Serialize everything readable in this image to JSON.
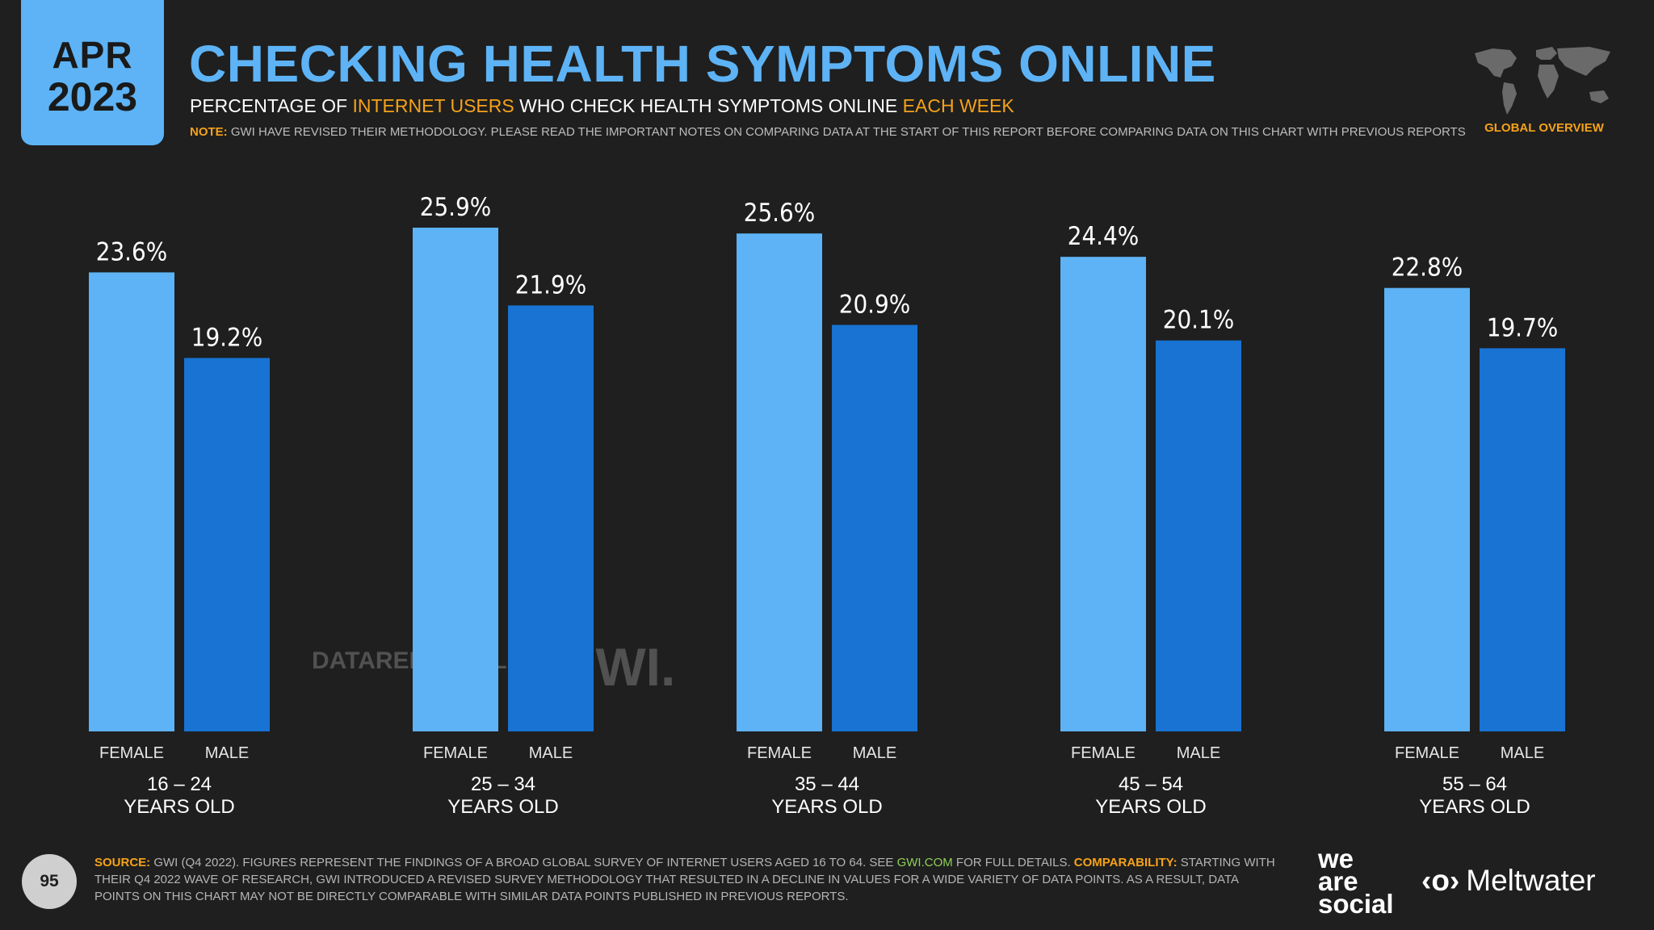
{
  "header": {
    "date_month": "APR",
    "date_year": "2023",
    "title": "CHECKING HEALTH SYMPTOMS ONLINE",
    "subtitle_part1": "PERCENTAGE OF ",
    "subtitle_highlight1": "INTERNET USERS",
    "subtitle_part2": " WHO CHECK HEALTH SYMPTOMS ONLINE ",
    "subtitle_highlight2": "EACH WEEK",
    "note_label": "NOTE:",
    "note_text": " GWI HAVE REVISED THEIR METHODOLOGY. PLEASE READ THE IMPORTANT NOTES ON COMPARING DATA AT THE START OF THIS REPORT BEFORE COMPARING DATA ON THIS CHART WITH PREVIOUS REPORTS",
    "region_label": "GLOBAL OVERVIEW"
  },
  "colors": {
    "female": "#5db3f5",
    "male": "#1873d3",
    "accent": "#f5a21a",
    "background": "#1f1f1f"
  },
  "chart_data": {
    "type": "bar",
    "title": "CHECKING HEALTH SYMPTOMS ONLINE",
    "categories": [
      "16 – 24",
      "25 – 34",
      "35 – 44",
      "45 – 54",
      "55 – 64"
    ],
    "category_suffix": "YEARS OLD",
    "series": [
      {
        "name": "FEMALE",
        "values": [
          23.6,
          25.9,
          25.6,
          24.4,
          22.8
        ],
        "labels": [
          "23.6%",
          "25.9%",
          "25.6%",
          "24.4%",
          "22.8%"
        ]
      },
      {
        "name": "MALE",
        "values": [
          19.2,
          21.9,
          20.9,
          20.1,
          19.7
        ],
        "labels": [
          "19.2%",
          "21.9%",
          "20.9%",
          "20.1%",
          "19.7%"
        ]
      }
    ],
    "unit": "%",
    "ylim": [
      0,
      25.9
    ],
    "grid": false,
    "legend": "none"
  },
  "watermarks": {
    "datareportal": "DATAREPORTAL",
    "gwi": "GWI."
  },
  "footer": {
    "page_number": "95",
    "source_label": "SOURCE:",
    "source_text_1": " GWI (Q4 2022). FIGURES REPRESENT THE FINDINGS OF A BROAD GLOBAL SURVEY OF INTERNET USERS AGED 16 TO 64. SEE ",
    "source_link": "GWI.COM",
    "source_text_2": " FOR FULL DETAILS. ",
    "comparability_label": "COMPARABILITY:",
    "comparability_text": " STARTING WITH THEIR Q4 2022 WAVE OF RESEARCH, GWI INTRODUCED A REVISED SURVEY METHODOLOGY THAT RESULTED IN A DECLINE IN VALUES FOR A WIDE VARIETY OF DATA POINTS. AS A RESULT, DATA POINTS ON THIS CHART MAY NOT BE DIRECTLY COMPARABLE WITH SIMILAR DATA POINTS PUBLISHED IN PREVIOUS REPORTS.",
    "brand_we": "we",
    "brand_are": "are",
    "brand_social": "social",
    "brand_meltwater_icon": "‹o›",
    "brand_meltwater": "Meltwater"
  }
}
